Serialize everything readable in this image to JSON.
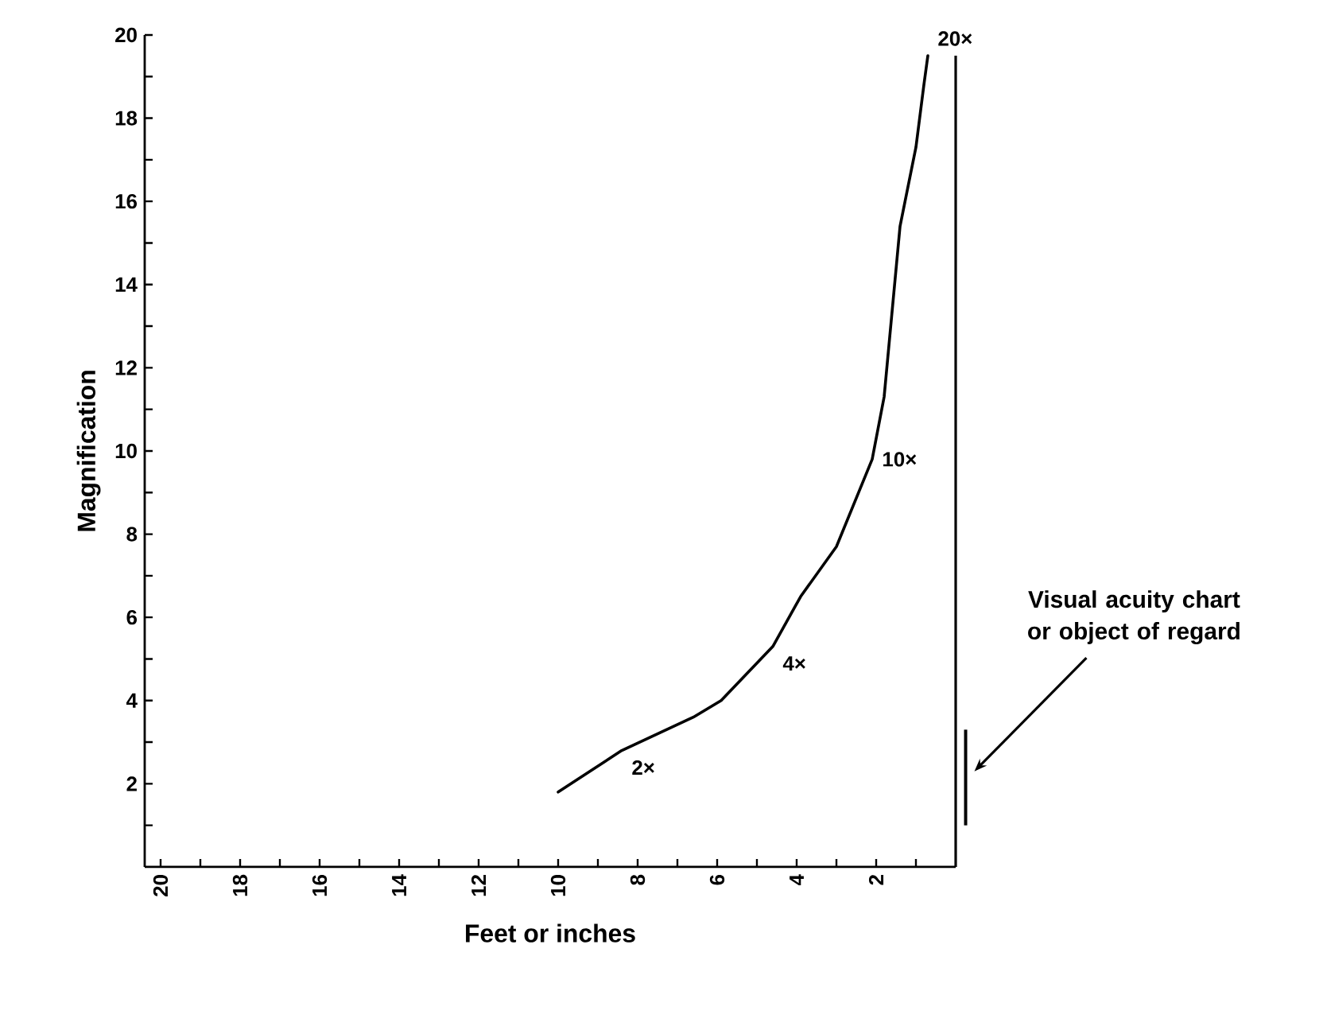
{
  "chart_data": {
    "type": "line",
    "xlabel": "Feet or inches",
    "ylabel": "Magnification",
    "x": [
      10,
      8.4,
      6.6,
      5.9,
      4.6,
      3.9,
      3,
      2.1,
      1.8,
      1.4,
      1,
      0.8,
      0.7
    ],
    "series": [
      {
        "color": "#000000",
        "values": [
          1.8,
          2.8,
          3.6,
          4,
          5.3,
          6.5,
          7.7,
          9.8,
          11.3,
          15.4,
          17.3,
          18.8,
          19.5
        ]
      }
    ],
    "xlim": [
      20.4,
      0
    ],
    "ylim": [
      0,
      20
    ],
    "xticks": [
      {
        "value": 1,
        "label": null
      },
      2,
      {
        "value": 3,
        "label": null
      },
      4,
      {
        "value": 5,
        "label": null
      },
      6,
      {
        "value": 7,
        "label": null
      },
      8,
      {
        "value": 9,
        "label": null
      },
      10,
      {
        "value": 11,
        "label": null
      },
      12,
      {
        "value": 13,
        "label": null
      },
      14,
      {
        "value": 15,
        "label": null
      },
      16,
      {
        "value": 17,
        "label": null
      },
      18,
      {
        "value": 19,
        "label": null
      },
      20
    ],
    "yticks": [
      {
        "value": 1,
        "label": null
      },
      2,
      {
        "value": 3,
        "label": null
      },
      4,
      {
        "value": 5,
        "label": null
      },
      6,
      {
        "value": 7,
        "label": null
      },
      8,
      {
        "value": 9,
        "label": null
      },
      10,
      {
        "value": 11,
        "label": null
      },
      12,
      {
        "value": 13,
        "label": null
      },
      14,
      {
        "value": 15,
        "label": null
      },
      16,
      {
        "value": 17,
        "label": null
      },
      18,
      {
        "value": 19,
        "label": null
      },
      20
    ],
    "ref_lines": [
      {
        "axis": "x",
        "value": 0
      }
    ],
    "annotations": [
      {
        "text": "2×",
        "x": 8.4,
        "y": 2.8
      },
      {
        "text": "4×",
        "x": 4.6,
        "y": 5.3
      },
      {
        "text": "10×",
        "x": 2.1,
        "y": 9.8
      },
      {
        "text": "20×",
        "x": 0.7,
        "y": 19.5
      },
      "Visual acuity chart or object of regard"
    ],
    "marker": "none",
    "line_style": "solid"
  }
}
